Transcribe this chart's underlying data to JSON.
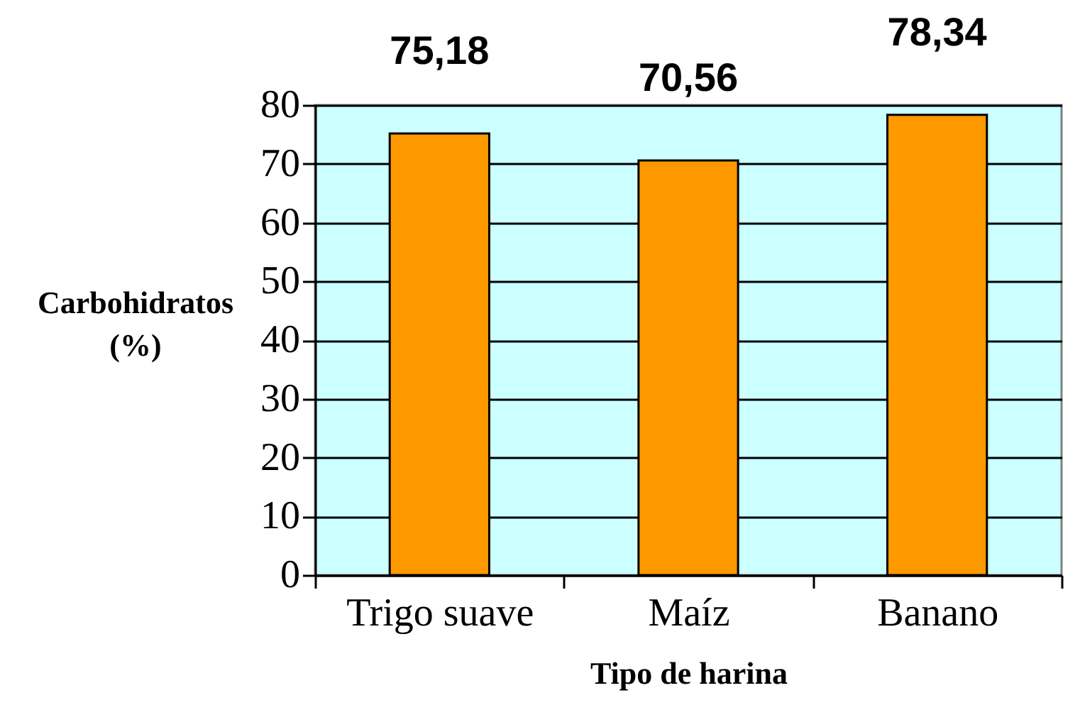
{
  "chart_data": {
    "type": "bar",
    "xlabel": "Tipo de harina",
    "ylabel": "Carbohidratos\n(%)",
    "categories": [
      "Trigo suave",
      "Maíz",
      "Banano"
    ],
    "values": [
      75.18,
      70.56,
      78.34
    ],
    "value_labels": [
      "75,18",
      "70,56",
      "78,34"
    ],
    "color": "#ff9900",
    "ylim": [
      0,
      80
    ],
    "yticks": [
      0,
      10,
      20,
      30,
      40,
      50,
      60,
      70,
      80
    ],
    "grid": "y"
  }
}
